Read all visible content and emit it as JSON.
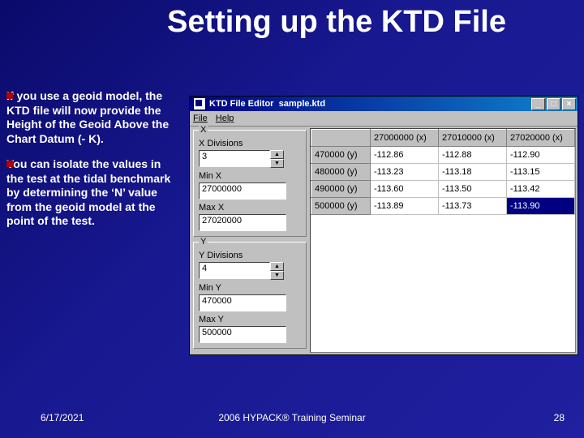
{
  "slide": {
    "title": "Setting up the KTD File",
    "paragraphs": [
      "If you use a geoid model, the KTD file will now provide the Height of the Geoid Above the Chart Datum (- K).",
      "You can isolate the values in the test at the tidal benchmark by determining the ‘N’ value from the geoid model at the point of the test."
    ],
    "footer": {
      "date": "6/17/2021",
      "center": "2006 HYPACK® Training Seminar",
      "page": "28"
    },
    "colors": {
      "background_gradient": [
        "#0a0a6b",
        "#2020a0"
      ],
      "bullet": "#b00000",
      "titlebar": "#000080",
      "win_face": "#c0c0c0"
    }
  },
  "window": {
    "title": "KTD File Editor",
    "filename": "sample.ktd",
    "menu": [
      {
        "u": "F",
        "r": "ile"
      },
      {
        "u": "H",
        "r": "elp"
      }
    ],
    "groupX": {
      "label": "X",
      "fields": [
        {
          "label": "X Divisions",
          "value": "3"
        },
        {
          "label": "Min X",
          "value": "27000000"
        },
        {
          "label": "Max X",
          "value": "27020000"
        }
      ]
    },
    "groupY": {
      "label": "Y",
      "fields": [
        {
          "label": "Y Divisions",
          "value": "4"
        },
        {
          "label": "Min Y",
          "value": "470000"
        },
        {
          "label": "Max Y",
          "value": "500000"
        }
      ]
    },
    "grid": {
      "columns": [
        "27000000 (x)",
        "27010000 (x)",
        "27020000 (x)"
      ],
      "rows": [
        {
          "h": "470000 (y)",
          "cells": [
            "-112.86",
            "-112.88",
            "-112.90"
          ]
        },
        {
          "h": "480000 (y)",
          "cells": [
            "-113.23",
            "-113.18",
            "-113.15"
          ]
        },
        {
          "h": "490000 (y)",
          "cells": [
            "-113.60",
            "-113.50",
            "-113.42"
          ]
        },
        {
          "h": "500000 (y)",
          "cells": [
            "-113.89",
            "-113.73",
            "-113.90"
          ]
        }
      ],
      "selected": {
        "row": 3,
        "col": 2
      }
    }
  }
}
